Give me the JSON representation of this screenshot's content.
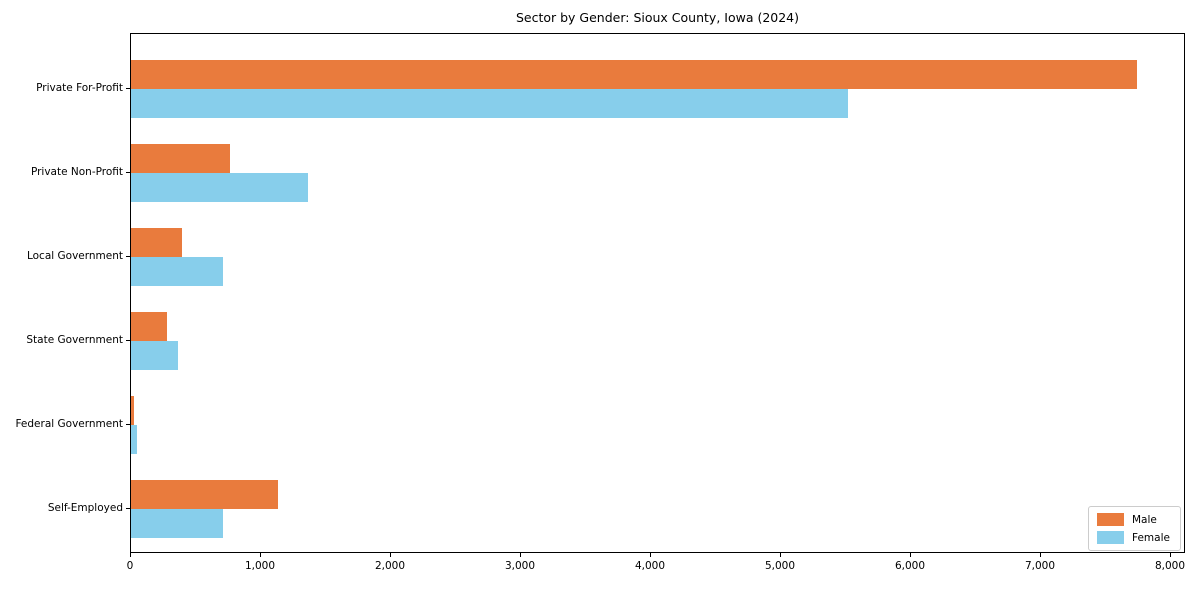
{
  "chart_data": {
    "type": "bar",
    "orientation": "horizontal",
    "title": "Sector by Gender: Sioux County, Iowa (2024)",
    "categories": [
      "Private For-Profit",
      "Private Non-Profit",
      "Local Government",
      "State Government",
      "Federal Government",
      "Self-Employed"
    ],
    "series": [
      {
        "name": "Male",
        "color": "#e97b3d",
        "values": [
          7740,
          765,
          395,
          280,
          25,
          1130
        ]
      },
      {
        "name": "Female",
        "color": "#87ceeb",
        "values": [
          5515,
          1360,
          710,
          365,
          45,
          705
        ]
      }
    ],
    "xlim": [
      0,
      8000
    ],
    "x_ticks": [
      0,
      1000,
      2000,
      3000,
      4000,
      5000,
      6000,
      7000,
      8000
    ],
    "x_tick_labels": [
      "0",
      "1,000",
      "2,000",
      "3,000",
      "4,000",
      "5,000",
      "6,000",
      "7,000",
      "8,000"
    ],
    "xlabel": "",
    "ylabel": "",
    "grid": false,
    "legend": {
      "position": "lower-right",
      "entries": [
        "Male",
        "Female"
      ]
    },
    "axis_color": "#000000",
    "legend_border_color": "#cccccc"
  }
}
